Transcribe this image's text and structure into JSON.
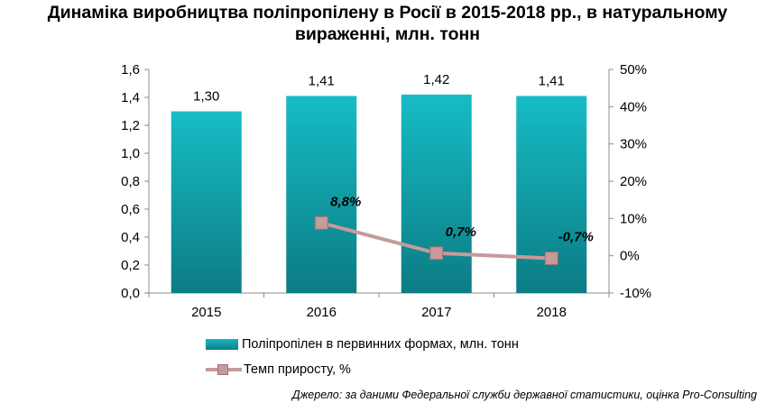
{
  "title_lines": [
    "Динаміка виробництва поліпропілену в Росії в 2015-2018 рр., в натуральному",
    "вираженні, млн. тонн"
  ],
  "chart_data": {
    "type": "bar",
    "title": "Динаміка виробництва поліпропілену в Росії в 2015-2018 рр., в натуральному вираженні, млн. тонн",
    "categories": [
      "2015",
      "2016",
      "2017",
      "2018"
    ],
    "series": [
      {
        "name": "Поліпропілен  в первинних  формах,  млн.  тонн",
        "type": "bar",
        "axis": "left",
        "values": [
          1.3,
          1.41,
          1.42,
          1.41
        ],
        "labels": [
          "1,30",
          "1,41",
          "1,42",
          "1,41"
        ],
        "color": "#14a9b2"
      },
      {
        "name": "Темп  приросту,  %",
        "type": "line",
        "axis": "right",
        "values": [
          null,
          8.8,
          0.7,
          -0.7
        ],
        "labels": [
          "",
          "8,8%",
          "0,7%",
          "-0,7%"
        ],
        "color": "#c79a9b"
      }
    ],
    "y_left": {
      "ylim": [
        0,
        1.6
      ],
      "ticks": [
        0,
        0.2,
        0.4,
        0.6,
        0.8,
        1.0,
        1.2,
        1.4,
        1.6
      ],
      "tick_labels": [
        "0,0",
        "0,2",
        "0,4",
        "0,6",
        "0,8",
        "1,0",
        "1,2",
        "1,4",
        "1,6"
      ]
    },
    "y_right": {
      "ylim": [
        -10,
        50
      ],
      "ticks": [
        -10,
        0,
        10,
        20,
        30,
        40,
        50
      ],
      "tick_labels": [
        "-10%",
        "0%",
        "10%",
        "20%",
        "30%",
        "40%",
        "50%"
      ]
    },
    "grid": false,
    "legend": "bottom"
  },
  "legend": {
    "bar_label": "Поліпропілен  в первинних  формах,  млн.  тонн",
    "line_label": "Темп  приросту,  %"
  },
  "source": "Джерело: за даними Федеральної служби державної статистики, оцінка Pro-Consulting"
}
